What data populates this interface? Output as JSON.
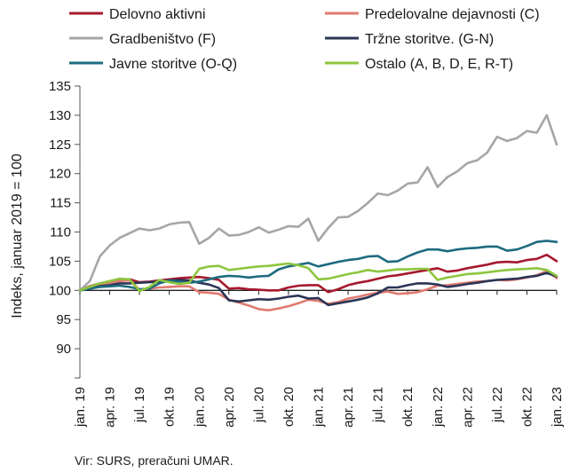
{
  "chart_data": {
    "type": "line",
    "title": "",
    "xlabel": "",
    "ylabel": "Indeks, januar 2019 = 100",
    "ylim": [
      85,
      135
    ],
    "yticks": [
      85,
      90,
      95,
      100,
      105,
      110,
      115,
      120,
      125,
      130,
      135
    ],
    "ytick_labels": [
      "",
      "90",
      "95",
      "100",
      "105",
      "110",
      "115",
      "120",
      "125",
      "130",
      "135"
    ],
    "grid": false,
    "baseline": 100,
    "legend_position": "top",
    "x_months": 49,
    "xtick_index": [
      0,
      3,
      6,
      9,
      12,
      15,
      18,
      21,
      24,
      27,
      30,
      33,
      36,
      39,
      42,
      45,
      48
    ],
    "xtick_labels": [
      "jan. 19",
      "apr. 19",
      "jul. 19",
      "okt. 19",
      "jan. 20",
      "apr. 20",
      "jul. 20",
      "okt. 20",
      "jan. 21",
      "apr. 21",
      "jul. 21",
      "okt. 21",
      "jan. 22",
      "apr. 22",
      "jul. 22",
      "okt. 22",
      "jan. 23"
    ],
    "series": [
      {
        "name": "Delovno aktivni",
        "color": "#a6192e",
        "values": [
          100,
          100.7,
          101.2,
          101.5,
          101.7,
          101.9,
          101.4,
          101.5,
          101.7,
          101.9,
          102.1,
          102.2,
          102.3,
          102.1,
          101.8,
          100.3,
          100.4,
          100.2,
          100.1,
          100.0,
          100.0,
          100.5,
          100.8,
          100.9,
          100.9,
          99.7,
          100.2,
          100.9,
          101.3,
          101.6,
          102.0,
          102.4,
          102.6,
          102.9,
          103.2,
          103.5,
          103.8,
          103.2,
          103.4,
          103.8,
          104.1,
          104.4,
          104.8,
          104.9,
          104.8,
          105.2,
          105.4,
          106.1,
          105.0
        ]
      },
      {
        "name": "Predelovalne dejavnosti (C)",
        "color": "#e07a70",
        "values": [
          100,
          100.6,
          101.0,
          101.3,
          101.6,
          101.7,
          100.1,
          100.3,
          100.5,
          100.6,
          100.7,
          100.7,
          99.7,
          99.6,
          99.4,
          98.4,
          97.9,
          97.4,
          96.8,
          96.6,
          96.9,
          97.3,
          97.8,
          98.4,
          98.2,
          97.7,
          98.0,
          98.6,
          98.9,
          99.3,
          99.6,
          99.8,
          99.4,
          99.5,
          99.7,
          100.2,
          100.8,
          100.9,
          101.1,
          101.3,
          101.5,
          101.6,
          101.8,
          101.7,
          101.9,
          102.2,
          102.6,
          103.3,
          102.1
        ]
      },
      {
        "name": "Gradbeništvo (F)",
        "color": "#a6a6a6",
        "values": [
          100,
          101.6,
          105.8,
          107.7,
          109.0,
          109.8,
          110.6,
          110.3,
          110.6,
          111.3,
          111.6,
          111.7,
          108.0,
          109.0,
          110.6,
          109.4,
          109.5,
          110.0,
          110.8,
          109.9,
          110.4,
          111.0,
          110.9,
          112.3,
          108.5,
          110.7,
          112.5,
          112.6,
          113.6,
          115.0,
          116.6,
          116.3,
          117.1,
          118.3,
          118.5,
          121.1,
          117.7,
          119.4,
          120.4,
          121.8,
          122.3,
          123.6,
          126.3,
          125.6,
          126.1,
          127.3,
          127.0,
          130.0,
          125.0
        ]
      },
      {
        "name": "Tržne storitve. (G-N)",
        "color": "#2b3556",
        "values": [
          100,
          100.3,
          100.7,
          100.9,
          101.2,
          101.2,
          101.3,
          101.4,
          101.5,
          101.7,
          101.8,
          101.7,
          101.3,
          101.0,
          100.4,
          98.3,
          98.1,
          98.3,
          98.5,
          98.4,
          98.6,
          98.9,
          99.1,
          98.6,
          98.7,
          97.5,
          97.8,
          98.1,
          98.4,
          98.8,
          99.5,
          100.5,
          100.5,
          100.9,
          101.2,
          101.2,
          101.0,
          100.6,
          100.8,
          101.1,
          101.3,
          101.6,
          101.8,
          101.9,
          102.0,
          102.3,
          102.5,
          103.0,
          102.4
        ]
      },
      {
        "name": "Javne storitve (O-Q)",
        "color": "#1e6b7f",
        "values": [
          100,
          100.3,
          100.6,
          100.7,
          100.8,
          100.6,
          100.2,
          100.3,
          101.2,
          101.7,
          101.5,
          101.3,
          101.5,
          101.9,
          102.3,
          102.5,
          102.4,
          102.2,
          102.4,
          102.5,
          103.6,
          104.1,
          104.4,
          104.7,
          104.1,
          104.5,
          104.9,
          105.2,
          105.4,
          105.8,
          105.9,
          104.9,
          105.0,
          105.8,
          106.5,
          107.0,
          107.0,
          106.7,
          107.0,
          107.2,
          107.3,
          107.5,
          107.5,
          106.8,
          107.0,
          107.6,
          108.3,
          108.5,
          108.3
        ]
      },
      {
        "name": "Ostalo (A, B, D, E, R-T)",
        "color": "#8dc63f",
        "values": [
          100,
          100.6,
          101.2,
          101.6,
          102.0,
          101.9,
          99.9,
          100.6,
          101.8,
          101.4,
          101.1,
          101.3,
          103.7,
          104.1,
          104.2,
          103.5,
          103.7,
          103.9,
          104.1,
          104.2,
          104.4,
          104.6,
          104.3,
          103.8,
          101.9,
          102.0,
          102.4,
          102.8,
          103.1,
          103.5,
          103.2,
          103.4,
          103.6,
          103.6,
          103.7,
          103.7,
          101.8,
          102.2,
          102.5,
          102.8,
          102.9,
          103.1,
          103.3,
          103.5,
          103.6,
          103.7,
          103.8,
          103.5,
          102.5
        ]
      }
    ]
  },
  "source_note": "Vir: SURS, preračuni UMAR."
}
